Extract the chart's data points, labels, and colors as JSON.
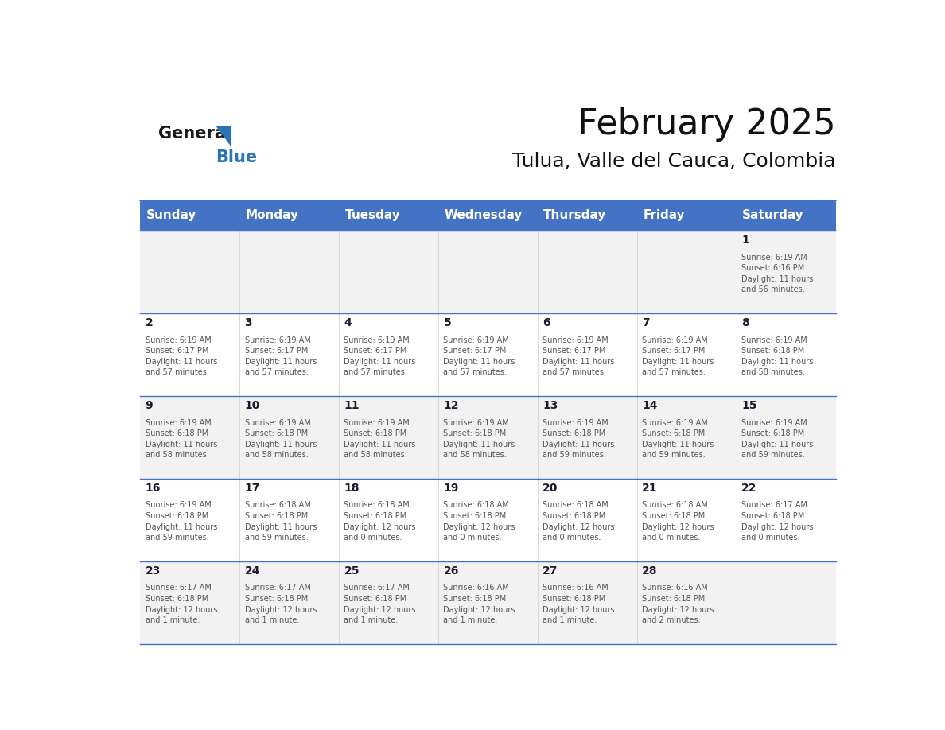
{
  "title": "February 2025",
  "subtitle": "Tulua, Valle del Cauca, Colombia",
  "header_bg": "#4472C4",
  "header_text_color": "#FFFFFF",
  "header_font_size": 11,
  "days_of_week": [
    "Sunday",
    "Monday",
    "Tuesday",
    "Wednesday",
    "Thursday",
    "Friday",
    "Saturday"
  ],
  "title_font_size": 32,
  "subtitle_font_size": 18,
  "cell_text_color": "#333333",
  "day_number_color": "#1a1a2e",
  "line_color": "#4472C4",
  "alt_row_bg": "#F2F2F2",
  "white_bg": "#FFFFFF",
  "logo_general_color": "#1a1a1a",
  "logo_blue_color": "#2775b6",
  "calendar_data": [
    [
      {
        "day": null,
        "info": null
      },
      {
        "day": null,
        "info": null
      },
      {
        "day": null,
        "info": null
      },
      {
        "day": null,
        "info": null
      },
      {
        "day": null,
        "info": null
      },
      {
        "day": null,
        "info": null
      },
      {
        "day": 1,
        "info": "Sunrise: 6:19 AM\nSunset: 6:16 PM\nDaylight: 11 hours\nand 56 minutes."
      }
    ],
    [
      {
        "day": 2,
        "info": "Sunrise: 6:19 AM\nSunset: 6:17 PM\nDaylight: 11 hours\nand 57 minutes."
      },
      {
        "day": 3,
        "info": "Sunrise: 6:19 AM\nSunset: 6:17 PM\nDaylight: 11 hours\nand 57 minutes."
      },
      {
        "day": 4,
        "info": "Sunrise: 6:19 AM\nSunset: 6:17 PM\nDaylight: 11 hours\nand 57 minutes."
      },
      {
        "day": 5,
        "info": "Sunrise: 6:19 AM\nSunset: 6:17 PM\nDaylight: 11 hours\nand 57 minutes."
      },
      {
        "day": 6,
        "info": "Sunrise: 6:19 AM\nSunset: 6:17 PM\nDaylight: 11 hours\nand 57 minutes."
      },
      {
        "day": 7,
        "info": "Sunrise: 6:19 AM\nSunset: 6:17 PM\nDaylight: 11 hours\nand 57 minutes."
      },
      {
        "day": 8,
        "info": "Sunrise: 6:19 AM\nSunset: 6:18 PM\nDaylight: 11 hours\nand 58 minutes."
      }
    ],
    [
      {
        "day": 9,
        "info": "Sunrise: 6:19 AM\nSunset: 6:18 PM\nDaylight: 11 hours\nand 58 minutes."
      },
      {
        "day": 10,
        "info": "Sunrise: 6:19 AM\nSunset: 6:18 PM\nDaylight: 11 hours\nand 58 minutes."
      },
      {
        "day": 11,
        "info": "Sunrise: 6:19 AM\nSunset: 6:18 PM\nDaylight: 11 hours\nand 58 minutes."
      },
      {
        "day": 12,
        "info": "Sunrise: 6:19 AM\nSunset: 6:18 PM\nDaylight: 11 hours\nand 58 minutes."
      },
      {
        "day": 13,
        "info": "Sunrise: 6:19 AM\nSunset: 6:18 PM\nDaylight: 11 hours\nand 59 minutes."
      },
      {
        "day": 14,
        "info": "Sunrise: 6:19 AM\nSunset: 6:18 PM\nDaylight: 11 hours\nand 59 minutes."
      },
      {
        "day": 15,
        "info": "Sunrise: 6:19 AM\nSunset: 6:18 PM\nDaylight: 11 hours\nand 59 minutes."
      }
    ],
    [
      {
        "day": 16,
        "info": "Sunrise: 6:19 AM\nSunset: 6:18 PM\nDaylight: 11 hours\nand 59 minutes."
      },
      {
        "day": 17,
        "info": "Sunrise: 6:18 AM\nSunset: 6:18 PM\nDaylight: 11 hours\nand 59 minutes."
      },
      {
        "day": 18,
        "info": "Sunrise: 6:18 AM\nSunset: 6:18 PM\nDaylight: 12 hours\nand 0 minutes."
      },
      {
        "day": 19,
        "info": "Sunrise: 6:18 AM\nSunset: 6:18 PM\nDaylight: 12 hours\nand 0 minutes."
      },
      {
        "day": 20,
        "info": "Sunrise: 6:18 AM\nSunset: 6:18 PM\nDaylight: 12 hours\nand 0 minutes."
      },
      {
        "day": 21,
        "info": "Sunrise: 6:18 AM\nSunset: 6:18 PM\nDaylight: 12 hours\nand 0 minutes."
      },
      {
        "day": 22,
        "info": "Sunrise: 6:17 AM\nSunset: 6:18 PM\nDaylight: 12 hours\nand 0 minutes."
      }
    ],
    [
      {
        "day": 23,
        "info": "Sunrise: 6:17 AM\nSunset: 6:18 PM\nDaylight: 12 hours\nand 1 minute."
      },
      {
        "day": 24,
        "info": "Sunrise: 6:17 AM\nSunset: 6:18 PM\nDaylight: 12 hours\nand 1 minute."
      },
      {
        "day": 25,
        "info": "Sunrise: 6:17 AM\nSunset: 6:18 PM\nDaylight: 12 hours\nand 1 minute."
      },
      {
        "day": 26,
        "info": "Sunrise: 6:16 AM\nSunset: 6:18 PM\nDaylight: 12 hours\nand 1 minute."
      },
      {
        "day": 27,
        "info": "Sunrise: 6:16 AM\nSunset: 6:18 PM\nDaylight: 12 hours\nand 1 minute."
      },
      {
        "day": 28,
        "info": "Sunrise: 6:16 AM\nSunset: 6:18 PM\nDaylight: 12 hours\nand 2 minutes."
      },
      {
        "day": null,
        "info": null
      }
    ]
  ]
}
